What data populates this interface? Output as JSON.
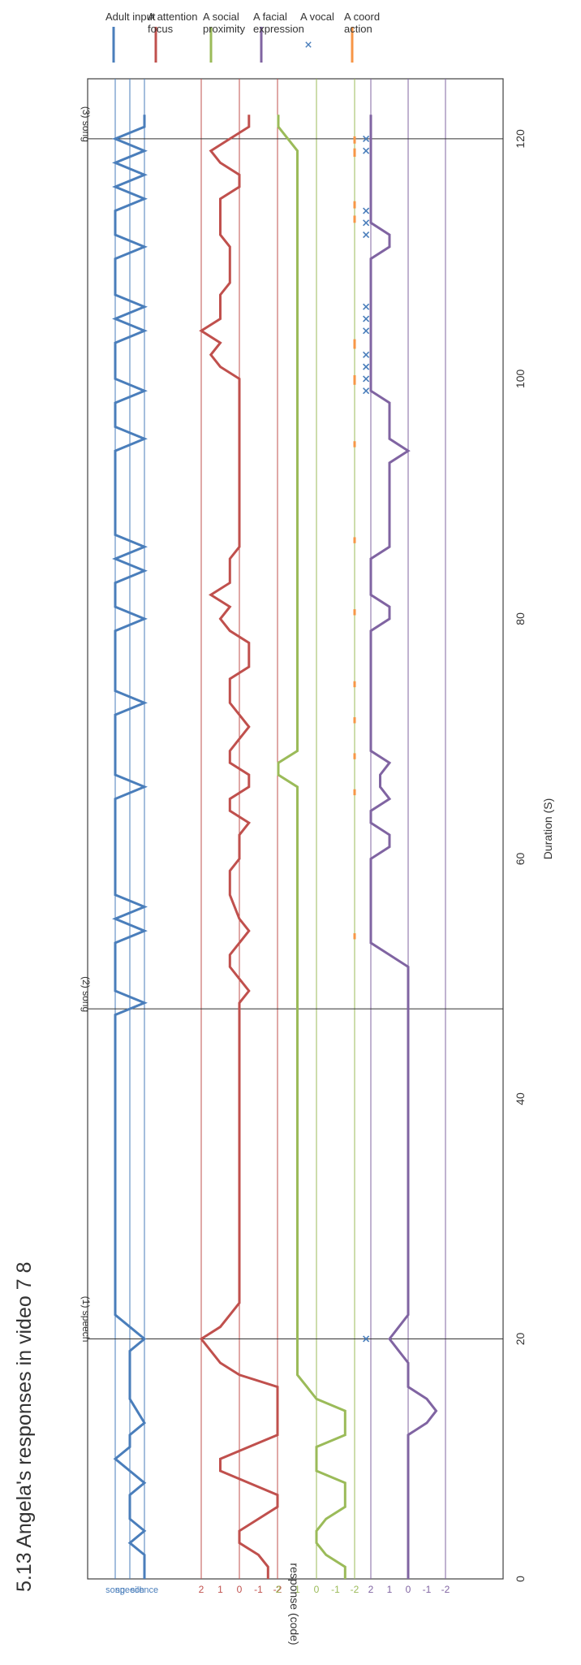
{
  "chart_data": {
    "type": "line",
    "title": "5.13 Angela's responses in video 7 8",
    "xlabel": "Duration (S)",
    "ylabel": "response (code)",
    "xlim": [
      0,
      125
    ],
    "x_ticks": [
      0,
      20,
      40,
      60,
      80,
      100,
      120
    ],
    "markers": [
      {
        "x": 20,
        "label": "(1) speech"
      },
      {
        "x": 47.5,
        "label": "(2) song"
      },
      {
        "x": 120,
        "label": "(3) song"
      }
    ],
    "bands": [
      {
        "name": "adult input",
        "color": "#4a7ebb",
        "ticks": [
          "song",
          "speech",
          "silence"
        ],
        "tick_values": [
          2,
          1,
          0
        ],
        "gridlines": [
          2,
          1,
          0
        ]
      },
      {
        "name": "attention",
        "color": "#c0504d",
        "ticks": [
          "2",
          "1",
          "0",
          "-1",
          "-2"
        ],
        "tick_values": [
          2,
          1,
          0,
          -1,
          -2
        ],
        "gridlines": [
          2,
          0,
          -2
        ]
      },
      {
        "name": "proximity",
        "color": "#9bbb59",
        "ticks": [
          "2",
          "1",
          "0",
          "-1",
          "-2"
        ],
        "tick_values": [
          2,
          1,
          0,
          -1,
          -2
        ],
        "gridlines": [
          0,
          -2
        ]
      },
      {
        "name": "facial",
        "color": "#8064a2",
        "ticks": [
          "2",
          "1",
          "0",
          "-1",
          "-2"
        ],
        "tick_values": [
          2,
          1,
          0,
          -1,
          -2
        ],
        "gridlines": [
          2,
          0,
          -2
        ]
      }
    ],
    "series": [
      {
        "name": "Adult input",
        "band": 0,
        "kind": "line",
        "color": "#4a7ebb",
        "points": [
          [
            0,
            0
          ],
          [
            2,
            0
          ],
          [
            3,
            1
          ],
          [
            4,
            0
          ],
          [
            5,
            1
          ],
          [
            7,
            1
          ],
          [
            8,
            0
          ],
          [
            9,
            1
          ],
          [
            10,
            2
          ],
          [
            11,
            1
          ],
          [
            12,
            1
          ],
          [
            13,
            0
          ],
          [
            15,
            1
          ],
          [
            19,
            1
          ],
          [
            20,
            0
          ],
          [
            21,
            1
          ],
          [
            22,
            2
          ],
          [
            47,
            2
          ],
          [
            48,
            0
          ],
          [
            49,
            2
          ],
          [
            53,
            2
          ],
          [
            54,
            0
          ],
          [
            55,
            2
          ],
          [
            56,
            0
          ],
          [
            57,
            2
          ],
          [
            65,
            2
          ],
          [
            66,
            0
          ],
          [
            67,
            2
          ],
          [
            72,
            2
          ],
          [
            73,
            0
          ],
          [
            74,
            2
          ],
          [
            79,
            2
          ],
          [
            80,
            0
          ],
          [
            81,
            2
          ],
          [
            83,
            2
          ],
          [
            84,
            0
          ],
          [
            85,
            2
          ],
          [
            86,
            0
          ],
          [
            87,
            2
          ],
          [
            94,
            2
          ],
          [
            95,
            0
          ],
          [
            96,
            2
          ],
          [
            98,
            2
          ],
          [
            99,
            0
          ],
          [
            100,
            2
          ],
          [
            103,
            2
          ],
          [
            104,
            0
          ],
          [
            105,
            2
          ],
          [
            106,
            0
          ],
          [
            107,
            2
          ],
          [
            110,
            2
          ],
          [
            111,
            0
          ],
          [
            112,
            2
          ],
          [
            114,
            2
          ],
          [
            115,
            0
          ],
          [
            116,
            2
          ],
          [
            117,
            0
          ],
          [
            118,
            2
          ],
          [
            119,
            0
          ],
          [
            120,
            2
          ],
          [
            121,
            0
          ],
          [
            122,
            0
          ]
        ]
      },
      {
        "name": "A attention focus",
        "band": 1,
        "kind": "line",
        "color": "#c0504d",
        "points": [
          [
            0,
            -1.5
          ],
          [
            1,
            -1.5
          ],
          [
            2,
            -1
          ],
          [
            3,
            0
          ],
          [
            4,
            0
          ],
          [
            6,
            -2
          ],
          [
            7,
            -2
          ],
          [
            9,
            1
          ],
          [
            10,
            1
          ],
          [
            12,
            -2
          ],
          [
            16,
            -2
          ],
          [
            17,
            0
          ],
          [
            18,
            1
          ],
          [
            19,
            1.5
          ],
          [
            20,
            2
          ],
          [
            21,
            1
          ],
          [
            22,
            0.5
          ],
          [
            23,
            0
          ],
          [
            48,
            0
          ],
          [
            49,
            -0.5
          ],
          [
            50,
            0
          ],
          [
            51,
            0.5
          ],
          [
            52,
            0.5
          ],
          [
            53,
            0
          ],
          [
            54,
            -0.5
          ],
          [
            55,
            0
          ],
          [
            57,
            0.5
          ],
          [
            59,
            0.5
          ],
          [
            60,
            0
          ],
          [
            62,
            0
          ],
          [
            63,
            -0.5
          ],
          [
            64,
            0.5
          ],
          [
            65,
            0.5
          ],
          [
            66,
            -0.5
          ],
          [
            67,
            -0.5
          ],
          [
            68,
            0.5
          ],
          [
            69,
            0.5
          ],
          [
            70,
            0
          ],
          [
            71,
            -0.5
          ],
          [
            72,
            0
          ],
          [
            73,
            0.5
          ],
          [
            75,
            0.5
          ],
          [
            76,
            -0.5
          ],
          [
            78,
            -0.5
          ],
          [
            79,
            0.5
          ],
          [
            80,
            1
          ],
          [
            81,
            0.5
          ],
          [
            82,
            1.5
          ],
          [
            83,
            0.5
          ],
          [
            85,
            0.5
          ],
          [
            86,
            0
          ],
          [
            90,
            0
          ],
          [
            100,
            0
          ],
          [
            101,
            1
          ],
          [
            102,
            1.5
          ],
          [
            103,
            1
          ],
          [
            104,
            2
          ],
          [
            105,
            1
          ],
          [
            107,
            1
          ],
          [
            108,
            0.5
          ],
          [
            111,
            0.5
          ],
          [
            112,
            1
          ],
          [
            115,
            1
          ],
          [
            116,
            0
          ],
          [
            117,
            0
          ],
          [
            118,
            1
          ],
          [
            119,
            1.5
          ],
          [
            120,
            0.5
          ],
          [
            121,
            -0.5
          ],
          [
            122,
            -0.5
          ]
        ]
      },
      {
        "name": "A social proximity",
        "band": 2,
        "kind": "line",
        "color": "#9bbb59",
        "points": [
          [
            0,
            -1.5
          ],
          [
            1,
            -1.5
          ],
          [
            2,
            -0.5
          ],
          [
            3,
            0
          ],
          [
            4,
            0
          ],
          [
            5,
            -0.5
          ],
          [
            6,
            -1.5
          ],
          [
            8,
            -1.5
          ],
          [
            9,
            0
          ],
          [
            11,
            0
          ],
          [
            12,
            -1.5
          ],
          [
            14,
            -1.5
          ],
          [
            15,
            0
          ],
          [
            16,
            0.5
          ],
          [
            17,
            1
          ],
          [
            19,
            1
          ],
          [
            20,
            1
          ],
          [
            66,
            1
          ],
          [
            67,
            2
          ],
          [
            68,
            2
          ],
          [
            69,
            1
          ],
          [
            118,
            1
          ],
          [
            119,
            1
          ],
          [
            120,
            1.5
          ],
          [
            121,
            2
          ],
          [
            122,
            2
          ]
        ]
      },
      {
        "name": "A facial expression",
        "band": 3,
        "kind": "line",
        "color": "#8064a2",
        "points": [
          [
            0,
            0
          ],
          [
            12,
            0
          ],
          [
            13,
            -1
          ],
          [
            14,
            -1.5
          ],
          [
            15,
            -1
          ],
          [
            16,
            0
          ],
          [
            18,
            0
          ],
          [
            19,
            0.5
          ],
          [
            20,
            1
          ],
          [
            21,
            0.5
          ],
          [
            22,
            0
          ],
          [
            50,
            0
          ],
          [
            51,
            0
          ],
          [
            52,
            1
          ],
          [
            53,
            2
          ],
          [
            60,
            2
          ],
          [
            61,
            1
          ],
          [
            62,
            1
          ],
          [
            63,
            2
          ],
          [
            64,
            2
          ],
          [
            65,
            1
          ],
          [
            66,
            1.5
          ],
          [
            67,
            1.5
          ],
          [
            68,
            1
          ],
          [
            69,
            2
          ],
          [
            75,
            2
          ],
          [
            76,
            2
          ],
          [
            79,
            2
          ],
          [
            80,
            1
          ],
          [
            81,
            1
          ],
          [
            82,
            2
          ],
          [
            85,
            2
          ],
          [
            86,
            1
          ],
          [
            93,
            1
          ],
          [
            94,
            0
          ],
          [
            95,
            1
          ],
          [
            98,
            1
          ],
          [
            99,
            2
          ],
          [
            110,
            2
          ],
          [
            111,
            1
          ],
          [
            112,
            1
          ],
          [
            113,
            2
          ],
          [
            122,
            2
          ]
        ]
      },
      {
        "name": "A vocal",
        "band": 2,
        "kind": "scatter",
        "color": "#4a7ebb",
        "value": -2.6,
        "points": [
          20,
          99,
          100,
          101,
          102,
          104,
          105,
          106,
          112,
          113,
          114,
          119,
          120
        ]
      },
      {
        "name": "A coord action",
        "band": 2,
        "kind": "segments",
        "color": "#f79646",
        "value": -2,
        "points": [
          [
            53.3,
            53.8
          ],
          [
            65.3,
            65.8
          ],
          [
            68.3,
            68.8
          ],
          [
            71.3,
            71.8
          ],
          [
            74.3,
            74.8
          ],
          [
            80.3,
            80.8
          ],
          [
            86.3,
            86.8
          ],
          [
            94.3,
            94.8
          ],
          [
            99.5,
            100.3
          ],
          [
            102.5,
            103.3
          ],
          [
            113,
            113.6
          ],
          [
            114.2,
            114.8
          ],
          [
            118.5,
            119.2
          ],
          [
            119.6,
            120.2
          ]
        ]
      }
    ]
  }
}
